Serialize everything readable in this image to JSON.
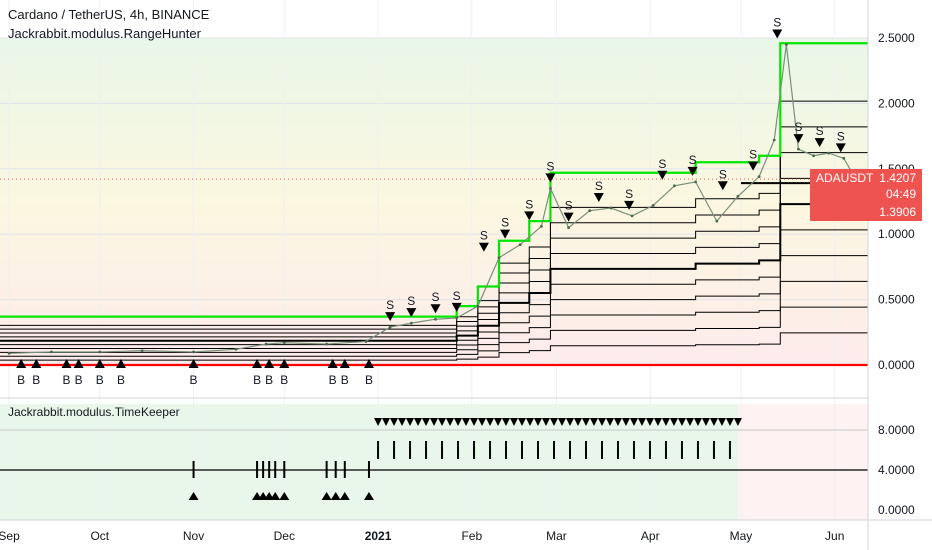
{
  "header": {
    "symbol_title": "Cardano / TetherUS, 4h, BINANCE",
    "indicator_title": "Jackrabbit.modulus.RangeHunter",
    "lower_indicator_title": "Jackrabbit.modulus.TimeKeeper"
  },
  "price_tag": {
    "symbol": "ADAUSDT",
    "price": "1.4207",
    "countdown": "04:49",
    "level": "1.3906",
    "color": "#ef5350"
  },
  "colors": {
    "price_line": "#7a8f7a",
    "upper_band": "#00e600",
    "lower_band": "#ff0000",
    "mid_lines": "#000000",
    "panel_green": "#e9f7ea",
    "panel_red": "#fde9e9",
    "panel_yellow": "#fbf6dd"
  },
  "chart_data": [
    {
      "type": "line",
      "title": "Cardano / TetherUS, 4h, BINANCE",
      "series": [
        {
          "name": "ADAUSDT",
          "x": [
            "2020-09-01",
            "2020-09-15",
            "2020-10-01",
            "2020-10-15",
            "2020-11-01",
            "2020-11-15",
            "2020-11-25",
            "2020-12-01",
            "2020-12-15",
            "2020-12-28",
            "2021-01-05",
            "2021-01-12",
            "2021-01-20",
            "2021-01-27",
            "2021-02-03",
            "2021-02-10",
            "2021-02-17",
            "2021-02-24",
            "2021-02-27",
            "2021-03-05",
            "2021-03-12",
            "2021-03-19",
            "2021-03-26",
            "2021-04-02",
            "2021-04-09",
            "2021-04-16",
            "2021-04-23",
            "2021-04-30",
            "2021-05-07",
            "2021-05-12",
            "2021-05-16",
            "2021-05-20",
            "2021-05-25",
            "2021-05-30",
            "2021-06-04",
            "2021-06-08"
          ],
          "values": [
            0.09,
            0.1,
            0.1,
            0.11,
            0.1,
            0.12,
            0.16,
            0.17,
            0.16,
            0.18,
            0.29,
            0.32,
            0.35,
            0.36,
            0.45,
            0.82,
            0.92,
            1.06,
            1.35,
            1.05,
            1.18,
            1.2,
            1.14,
            1.22,
            1.37,
            1.4,
            1.1,
            1.29,
            1.44,
            1.72,
            2.45,
            1.65,
            1.6,
            1.62,
            1.58,
            1.42
          ]
        }
      ],
      "x_ticks": [
        "Sep",
        "Oct",
        "Nov",
        "Dec",
        "2021",
        "Feb",
        "Mar",
        "Apr",
        "May",
        "Jun"
      ],
      "y_ticks": [
        "0.0000",
        "0.5000",
        "1.0000",
        "1.5000",
        "2.0000",
        "2.5000"
      ],
      "ylim": [
        -0.05,
        2.8
      ],
      "grid": true,
      "markers": {
        "buy_label": "B",
        "sell_label": "S"
      }
    },
    {
      "type": "bar",
      "title": "Jackrabbit.modulus.TimeKeeper",
      "y_ticks": [
        "0.0000",
        "4.0000",
        "8.0000"
      ],
      "ylim": [
        -0.5,
        10.5
      ],
      "reference_line": 4,
      "sell_period": [
        "2021-01-01",
        "2021-04-30"
      ],
      "buy_period": [
        "2020-11-01",
        "2020-12-31"
      ]
    }
  ]
}
